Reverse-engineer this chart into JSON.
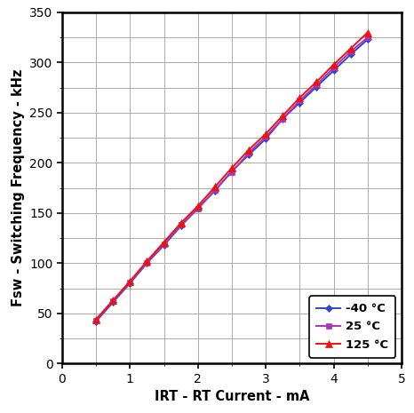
{
  "series": [
    {
      "label": "-40 °C",
      "color": "#3344cc",
      "marker": "D",
      "markersize": 4.5,
      "x": [
        0.5,
        0.75,
        1.0,
        1.25,
        1.5,
        1.75,
        2.0,
        2.25,
        2.5,
        2.75,
        3.0,
        3.25,
        3.5,
        3.75,
        4.0,
        4.25,
        4.5
      ],
      "y": [
        42,
        61,
        80,
        100,
        118,
        137,
        155,
        172,
        192,
        208,
        224,
        244,
        260,
        276,
        292,
        308,
        323
      ]
    },
    {
      "label": "25 °C",
      "color": "#aa33bb",
      "marker": "s",
      "markersize": 4.5,
      "x": [
        0.5,
        0.75,
        1.0,
        1.25,
        1.5,
        1.75,
        2.0,
        2.25,
        2.5,
        2.75,
        3.0,
        3.25,
        3.5,
        3.75,
        4.0,
        4.25,
        4.5
      ],
      "y": [
        43,
        62,
        81,
        100,
        119,
        138,
        154,
        173,
        191,
        210,
        226,
        244,
        262,
        278,
        295,
        311,
        325
      ]
    },
    {
      "label": "125 °C",
      "color": "#ee1111",
      "marker": "^",
      "markersize": 5.5,
      "x": [
        0.5,
        0.75,
        1.0,
        1.25,
        1.5,
        1.75,
        2.0,
        2.25,
        2.5,
        2.75,
        3.0,
        3.25,
        3.5,
        3.75,
        4.0,
        4.25,
        4.5
      ],
      "y": [
        44,
        63,
        82,
        102,
        121,
        140,
        157,
        176,
        195,
        213,
        229,
        247,
        265,
        281,
        298,
        314,
        330
      ]
    }
  ],
  "xlabel": "IRT - RT Current - mA",
  "ylabel": "Fsw - Switching Frequency - kHz",
  "xlim": [
    0,
    5
  ],
  "ylim": [
    0,
    350
  ],
  "xticks": [
    0,
    1,
    2,
    3,
    4,
    5
  ],
  "yticks": [
    0,
    50,
    100,
    150,
    200,
    250,
    300,
    350
  ],
  "grid_color": "#aaaaaa",
  "background_color": "#ffffff",
  "legend_loc": "lower right",
  "linewidth": 1.4,
  "xlabel_fontsize": 10.5,
  "ylabel_fontsize": 10.5,
  "tick_fontsize": 10,
  "legend_fontsize": 9.5,
  "spine_linewidth": 1.8
}
